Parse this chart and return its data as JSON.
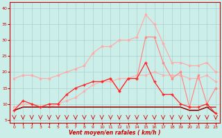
{
  "x": [
    0,
    1,
    2,
    3,
    4,
    5,
    6,
    7,
    8,
    9,
    10,
    11,
    12,
    13,
    14,
    15,
    16,
    17,
    18,
    19,
    20,
    21,
    22,
    23
  ],
  "line_gust_upper": [
    18,
    19,
    19,
    18,
    18,
    19,
    20,
    21,
    22,
    26,
    28,
    28,
    30,
    30,
    31,
    38,
    35,
    29,
    23,
    23,
    22,
    22,
    23,
    20
  ],
  "line_gust_med": [
    null,
    null,
    null,
    null,
    null,
    null,
    null,
    null,
    null,
    null,
    17,
    18,
    14,
    18,
    18,
    31,
    31,
    23,
    18,
    20,
    9,
    19,
    10,
    15
  ],
  "line_wind_red": [
    8,
    11,
    10,
    9,
    10,
    10,
    13,
    15,
    16,
    17,
    17,
    18,
    14,
    18,
    18,
    23,
    17,
    13,
    13,
    10,
    9,
    9,
    10,
    7
  ],
  "line_mean1": [
    9,
    10,
    10,
    9,
    9,
    10,
    11,
    12,
    14,
    16,
    17,
    17,
    18,
    18,
    19,
    19,
    20,
    19,
    19,
    19,
    18,
    18,
    19,
    17
  ],
  "line_flat1": [
    8,
    9,
    9,
    9,
    9,
    9,
    9,
    9,
    9,
    9,
    9,
    9,
    9,
    9,
    9,
    9,
    9,
    9,
    9,
    9,
    8,
    8,
    9,
    9
  ],
  "line_flat2": [
    8,
    9,
    9,
    9,
    9,
    9,
    9,
    9,
    9,
    9,
    9,
    9,
    9,
    9,
    9,
    9,
    9,
    9,
    9,
    9,
    8,
    8,
    9,
    7
  ],
  "color_light_pink": "#ffaaaa",
  "color_med_pink": "#ff8888",
  "color_red": "#ff2222",
  "color_dark_red": "#cc0000",
  "color_darkest": "#880000",
  "bg_color": "#cceee8",
  "grid_color": "#aacccc",
  "xlabel": "Vent moyen/en rafales ( km/h )",
  "ylim": [
    4,
    42
  ],
  "xlim": [
    -0.5,
    23.5
  ],
  "yticks": [
    5,
    10,
    15,
    20,
    25,
    30,
    35,
    40
  ],
  "xticks": [
    0,
    1,
    2,
    3,
    4,
    5,
    6,
    7,
    8,
    9,
    10,
    11,
    12,
    13,
    14,
    15,
    16,
    17,
    18,
    19,
    20,
    21,
    22,
    23
  ]
}
